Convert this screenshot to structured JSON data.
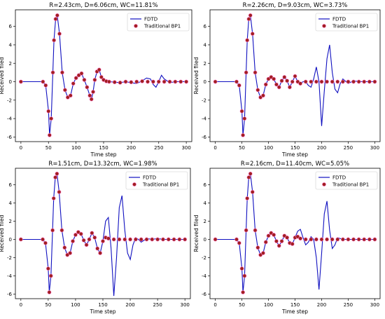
{
  "chart_data": [
    {
      "type": "line",
      "title": "R=2.43cm, D=6.06cm, WC=11.81%",
      "xlabel": "Time step",
      "ylabel": "Received filed",
      "xlim": [
        -10,
        310
      ],
      "ylim": [
        -6.5,
        7.8
      ],
      "xticks": [
        0,
        50,
        100,
        150,
        200,
        250,
        300
      ],
      "yticks": [
        -6,
        -4,
        -2,
        0,
        2,
        4,
        6
      ],
      "legend": "top-right",
      "series": [
        {
          "name": "FDTD",
          "color": "#1010c0",
          "style": "line",
          "x": [
            0,
            40,
            45,
            50,
            52,
            55,
            58,
            60,
            63,
            66,
            70,
            75,
            80,
            85,
            90,
            95,
            100,
            105,
            110,
            115,
            120,
            125,
            128,
            131,
            134,
            138,
            142,
            146,
            150,
            155,
            160,
            170,
            180,
            190,
            200,
            210,
            220,
            228,
            235,
            240,
            245,
            250,
            255,
            260,
            270,
            280,
            290,
            300
          ],
          "y": [
            0,
            0,
            -0.4,
            -3.2,
            -5.8,
            -4.0,
            1.0,
            4.5,
            6.8,
            7.2,
            5.2,
            1.0,
            -0.9,
            -1.7,
            -1.5,
            -0.2,
            0.4,
            0.7,
            0.9,
            0.2,
            -0.6,
            -1.5,
            -1.9,
            -1.1,
            0.2,
            1.1,
            1.3,
            0.5,
            0.2,
            0.05,
            0.0,
            -0.05,
            -0.1,
            0.0,
            -0.1,
            -0.2,
            0.1,
            0.4,
            0.3,
            -0.3,
            -0.6,
            0.0,
            0.7,
            0.3,
            -0.1,
            0.0,
            0.0,
            0.0
          ]
        },
        {
          "name": "Traditional BP1",
          "color": "#a02020",
          "style": "markers",
          "x": [
            0,
            40,
            45,
            50,
            52,
            55,
            58,
            60,
            63,
            66,
            70,
            75,
            80,
            85,
            90,
            95,
            100,
            105,
            110,
            115,
            120,
            125,
            128,
            131,
            134,
            138,
            142,
            146,
            150,
            155,
            160,
            170,
            180,
            190,
            200,
            210,
            220,
            230,
            240,
            250,
            260,
            270,
            280,
            290,
            300
          ],
          "y": [
            0,
            0,
            -0.4,
            -3.2,
            -5.8,
            -4.0,
            1.0,
            4.5,
            6.8,
            7.2,
            5.2,
            1.0,
            -0.9,
            -1.7,
            -1.5,
            -0.2,
            0.4,
            0.7,
            0.9,
            0.2,
            -0.6,
            -1.5,
            -1.9,
            -1.1,
            0.2,
            1.1,
            1.3,
            0.5,
            0.2,
            0.05,
            0.0,
            -0.05,
            -0.1,
            0.0,
            -0.05,
            0.0,
            0.05,
            0.0,
            0.0,
            0.0,
            0.0,
            0.0,
            0.0,
            0.0,
            0.0
          ]
        }
      ]
    },
    {
      "type": "line",
      "title": "R=2.26cm, D=9.03cm, WC=3.73%",
      "xlabel": "Time step",
      "ylabel": "Received filed",
      "xlim": [
        -10,
        310
      ],
      "ylim": [
        -6.5,
        7.8
      ],
      "xticks": [
        0,
        50,
        100,
        150,
        200,
        250,
        300
      ],
      "yticks": [
        -6,
        -4,
        -2,
        0,
        2,
        4,
        6
      ],
      "legend": "top-right",
      "series": [
        {
          "name": "FDTD",
          "color": "#1010c0",
          "style": "line",
          "x": [
            0,
            40,
            45,
            50,
            52,
            55,
            58,
            60,
            63,
            66,
            70,
            75,
            80,
            85,
            90,
            95,
            100,
            105,
            110,
            115,
            120,
            125,
            130,
            135,
            140,
            145,
            150,
            155,
            160,
            165,
            170,
            175,
            180,
            185,
            190,
            195,
            200,
            205,
            210,
            215,
            220,
            225,
            230,
            235,
            240,
            250,
            260,
            270,
            280,
            290,
            300
          ],
          "y": [
            0,
            0,
            -0.4,
            -3.2,
            -5.8,
            -4.0,
            1.0,
            4.5,
            6.8,
            7.2,
            5.2,
            1.0,
            -0.9,
            -1.7,
            -1.5,
            -0.3,
            0.3,
            0.5,
            0.3,
            -0.3,
            -0.6,
            0.1,
            0.5,
            0.1,
            -0.6,
            0.0,
            0.6,
            0.0,
            -0.2,
            0.0,
            0.0,
            -0.4,
            -0.6,
            0.3,
            1.6,
            0.0,
            -4.8,
            -1.0,
            2.5,
            4.0,
            1.0,
            -0.8,
            -1.2,
            -0.2,
            0.3,
            -0.2,
            0.1,
            0.0,
            0.0,
            0.0,
            0.0
          ]
        },
        {
          "name": "Traditional BP1",
          "color": "#a02020",
          "style": "markers",
          "x": [
            0,
            40,
            45,
            50,
            52,
            55,
            58,
            60,
            63,
            66,
            70,
            75,
            80,
            85,
            90,
            95,
            100,
            105,
            110,
            115,
            120,
            125,
            130,
            135,
            140,
            145,
            150,
            155,
            160,
            170,
            180,
            190,
            200,
            210,
            220,
            230,
            240,
            250,
            260,
            270,
            280,
            290,
            300
          ],
          "y": [
            0,
            0,
            -0.4,
            -3.2,
            -5.8,
            -4.0,
            1.0,
            4.5,
            6.8,
            7.2,
            5.2,
            1.0,
            -0.9,
            -1.7,
            -1.5,
            -0.3,
            0.3,
            0.5,
            0.3,
            -0.3,
            -0.6,
            0.1,
            0.5,
            0.1,
            -0.6,
            0.0,
            0.6,
            0.0,
            -0.2,
            0.0,
            0.0,
            0.0,
            0.0,
            0.0,
            0.0,
            0.0,
            0.0,
            0.0,
            0.0,
            0.0,
            0.0,
            0.0,
            0.0
          ]
        }
      ]
    },
    {
      "type": "line",
      "title": "R=1.51cm, D=13.32cm, WC=1.98%",
      "xlabel": "Time step",
      "ylabel": "Received filed",
      "xlim": [
        -10,
        310
      ],
      "ylim": [
        -6.5,
        7.8
      ],
      "xticks": [
        0,
        50,
        100,
        150,
        200,
        250,
        300
      ],
      "yticks": [
        -6,
        -4,
        -2,
        0,
        2,
        4,
        6
      ],
      "legend": "top-right",
      "series": [
        {
          "name": "FDTD",
          "color": "#1010c0",
          "style": "line",
          "x": [
            0,
            40,
            45,
            50,
            52,
            55,
            58,
            60,
            63,
            66,
            70,
            75,
            80,
            85,
            90,
            95,
            100,
            105,
            110,
            115,
            120,
            125,
            130,
            135,
            140,
            145,
            150,
            155,
            160,
            165,
            170,
            175,
            180,
            185,
            190,
            195,
            200,
            205,
            210,
            215,
            220,
            230,
            240,
            250,
            260,
            270,
            280,
            290,
            300
          ],
          "y": [
            0,
            0,
            -0.4,
            -3.2,
            -5.8,
            -4.0,
            1.0,
            4.5,
            6.8,
            7.2,
            5.2,
            1.0,
            -0.9,
            -1.7,
            -1.5,
            -0.2,
            0.5,
            0.8,
            0.6,
            -0.1,
            -0.6,
            0.0,
            0.7,
            0.2,
            -1.0,
            -1.5,
            -0.2,
            2.0,
            2.4,
            -1.0,
            -6.2,
            -2.0,
            3.5,
            4.8,
            1.0,
            -1.5,
            -2.2,
            -0.6,
            0.2,
            0.0,
            -0.3,
            0.1,
            0.0,
            0.1,
            0.0,
            0.0,
            0.0,
            0.0,
            0.0
          ]
        },
        {
          "name": "Traditional BP1",
          "color": "#a02020",
          "style": "markers",
          "x": [
            0,
            40,
            45,
            50,
            52,
            55,
            58,
            60,
            63,
            66,
            70,
            75,
            80,
            85,
            90,
            95,
            100,
            105,
            110,
            115,
            120,
            125,
            130,
            135,
            140,
            145,
            150,
            155,
            160,
            170,
            180,
            190,
            200,
            210,
            220,
            230,
            240,
            250,
            260,
            270,
            280,
            290,
            300
          ],
          "y": [
            0,
            0,
            -0.4,
            -3.2,
            -5.8,
            -4.0,
            1.0,
            4.5,
            6.8,
            7.2,
            5.2,
            1.0,
            -0.9,
            -1.7,
            -1.5,
            -0.2,
            0.5,
            0.8,
            0.6,
            -0.1,
            -0.6,
            0.0,
            0.7,
            0.2,
            -1.0,
            -1.5,
            -0.2,
            0.2,
            0.1,
            0.0,
            0.0,
            0.0,
            0.0,
            0.0,
            0.0,
            0.0,
            0.0,
            0.0,
            0.0,
            0.0,
            0.0,
            0.0,
            0.0
          ]
        }
      ]
    },
    {
      "type": "line",
      "title": "R=2.16cm, D=11.40cm, WC=5.05%",
      "xlabel": "Time step",
      "ylabel": "Received filed",
      "xlim": [
        -10,
        310
      ],
      "ylim": [
        -6.5,
        7.8
      ],
      "xticks": [
        0,
        50,
        100,
        150,
        200,
        250,
        300
      ],
      "yticks": [
        -6,
        -4,
        -2,
        0,
        2,
        4,
        6
      ],
      "legend": "top-right",
      "series": [
        {
          "name": "FDTD",
          "color": "#1010c0",
          "style": "line",
          "x": [
            0,
            40,
            45,
            50,
            52,
            55,
            58,
            60,
            63,
            66,
            70,
            75,
            80,
            85,
            90,
            95,
            100,
            105,
            110,
            115,
            120,
            125,
            130,
            135,
            140,
            145,
            150,
            155,
            160,
            165,
            170,
            175,
            180,
            185,
            190,
            195,
            200,
            205,
            210,
            215,
            220,
            225,
            230,
            240,
            250,
            260,
            270,
            280,
            290,
            300
          ],
          "y": [
            0,
            0,
            -0.4,
            -3.2,
            -5.8,
            -4.0,
            1.0,
            4.5,
            6.8,
            7.2,
            5.2,
            1.0,
            -0.9,
            -1.7,
            -1.5,
            -0.3,
            0.4,
            0.7,
            0.5,
            -0.2,
            -0.7,
            -0.2,
            0.4,
            0.2,
            -0.4,
            -0.5,
            0.2,
            0.9,
            1.1,
            0.2,
            -0.6,
            -0.3,
            0.3,
            0.0,
            -2.0,
            -5.5,
            -1.5,
            2.8,
            4.2,
            1.0,
            -1.0,
            -0.6,
            0.2,
            0.0,
            0.0,
            0.0,
            0.0,
            0.0,
            0.0,
            0.0
          ]
        },
        {
          "name": "Traditional BP1",
          "color": "#a02020",
          "style": "markers",
          "x": [
            0,
            40,
            45,
            50,
            52,
            55,
            58,
            60,
            63,
            66,
            70,
            75,
            80,
            85,
            90,
            95,
            100,
            105,
            110,
            115,
            120,
            125,
            130,
            135,
            140,
            145,
            150,
            155,
            160,
            170,
            180,
            190,
            200,
            210,
            220,
            230,
            240,
            250,
            260,
            270,
            280,
            290,
            300
          ],
          "y": [
            0,
            0,
            -0.4,
            -3.2,
            -5.8,
            -4.0,
            1.0,
            4.5,
            6.8,
            7.2,
            5.2,
            1.0,
            -0.9,
            -1.7,
            -1.5,
            -0.3,
            0.4,
            0.7,
            0.5,
            -0.2,
            -0.7,
            -0.2,
            0.4,
            0.2,
            -0.4,
            -0.5,
            0.2,
            0.3,
            0.1,
            0.0,
            0.0,
            0.0,
            0.0,
            0.0,
            0.0,
            0.0,
            0.0,
            0.0,
            0.0,
            0.0,
            0.0,
            0.0,
            0.0
          ]
        }
      ]
    }
  ]
}
